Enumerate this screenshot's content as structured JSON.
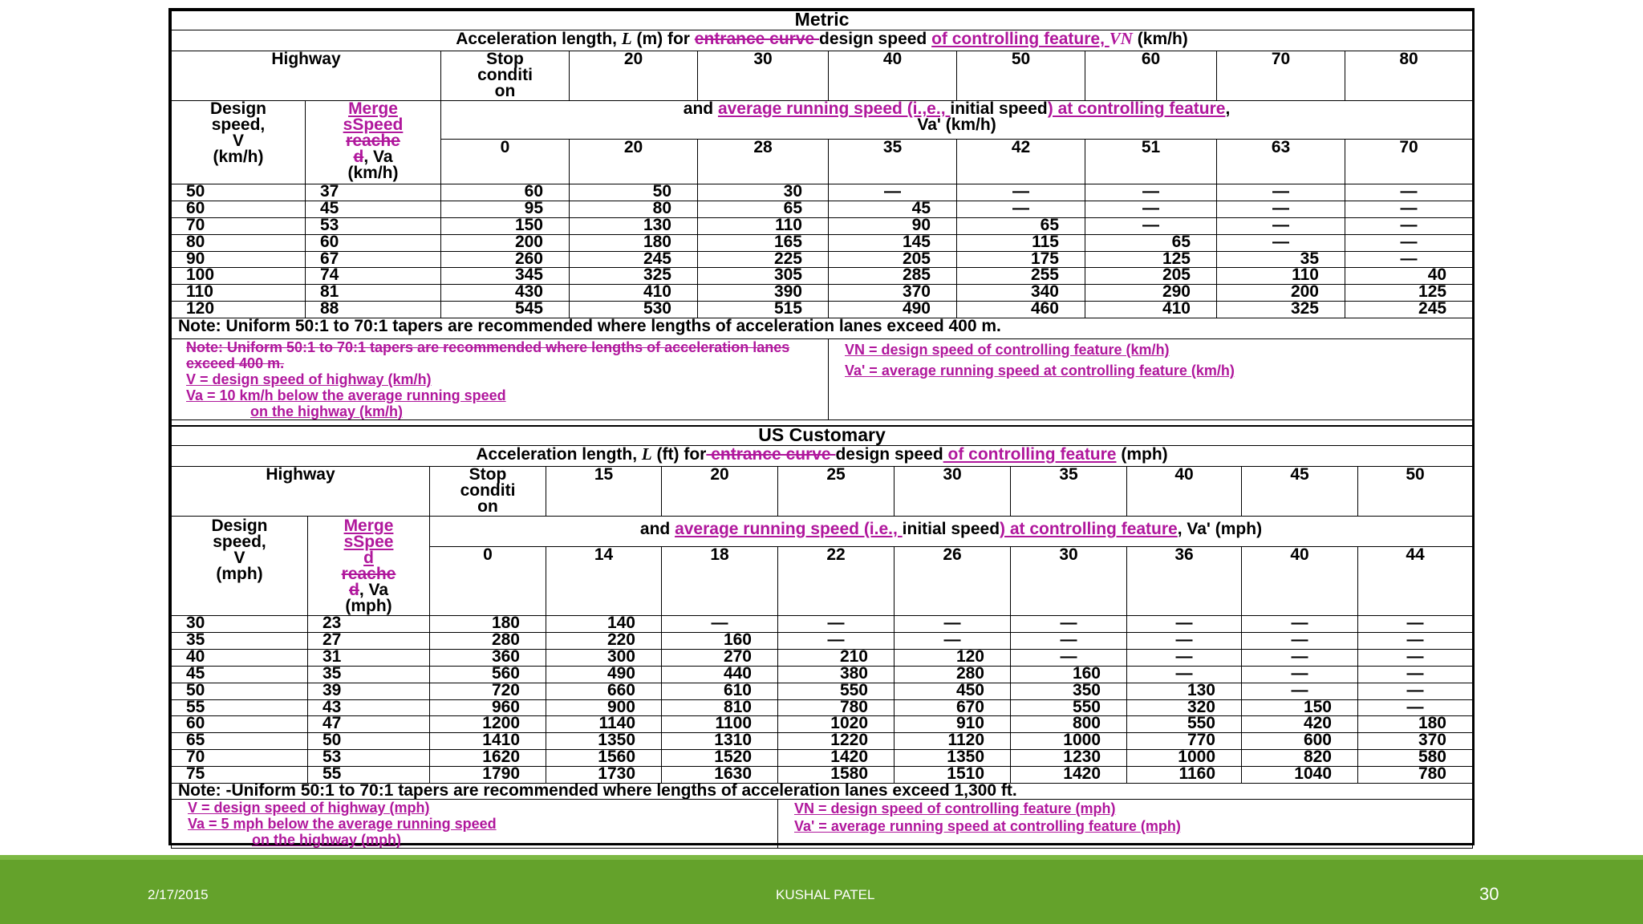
{
  "metric": {
    "title": "Metric",
    "subtitle": {
      "p1": "Acceleration length, ",
      "sym": "L",
      "p2": " (m) for ",
      "strike": "entrance curve ",
      "p3": "design speed ",
      "ins": "of controlling feature, ",
      "sym2": "VN",
      "p4": " (km/h)"
    },
    "highway_label": "Highway",
    "stop_condition": "Stop\nconditi\non",
    "design_speeds": [
      "20",
      "30",
      "40",
      "50",
      "60",
      "70",
      "80"
    ],
    "design_speed_label": "Design\nspeed,\nV\n(km/h)",
    "merge_label": {
      "ins": "Merge\nsSpeed",
      "strike": "reache\nd",
      "rest": ", Va\n(km/h)"
    },
    "avg_row": {
      "p1": "and ",
      "ins1": "average running speed (i.,e., ",
      "p2": "initial speed",
      "ins2": ") at controlling feature",
      "p3": ",",
      "line2": "Va' (km/h)"
    },
    "initial_speeds": [
      "0",
      "20",
      "28",
      "35",
      "42",
      "51",
      "63",
      "70"
    ],
    "rows": [
      [
        "50",
        "37",
        "60",
        "50",
        "30",
        "—",
        "—",
        "—",
        "—",
        "—"
      ],
      [
        "60",
        "45",
        "95",
        "80",
        "65",
        "45",
        "—",
        "—",
        "—",
        "—"
      ],
      [
        "70",
        "53",
        "150",
        "130",
        "110",
        "90",
        "65",
        "—",
        "—",
        "—"
      ],
      [
        "80",
        "60",
        "200",
        "180",
        "165",
        "145",
        "115",
        "65",
        "—",
        "—"
      ],
      [
        "90",
        "67",
        "260",
        "245",
        "225",
        "205",
        "175",
        "125",
        "35",
        "—"
      ],
      [
        "100",
        "74",
        "345",
        "325",
        "305",
        "285",
        "255",
        "205",
        "110",
        "40"
      ],
      [
        "110",
        "81",
        "430",
        "410",
        "390",
        "370",
        "340",
        "290",
        "200",
        "125"
      ],
      [
        "120",
        "88",
        "545",
        "530",
        "515",
        "490",
        "460",
        "410",
        "325",
        "245"
      ]
    ],
    "note": "Note:  Uniform 50:1 to 70:1 tapers are recommended where lengths of acceleration lanes exceed 400 m.",
    "legend_left": {
      "strike": "Note:  Uniform 50:1 to 70:1 tapers are recommended where lengths of acceleration lanes exceed 400 m.",
      "l1": "V  = design speed of highway (km/h)",
      "l2": "Va  = 10 km/h below the average running speed",
      "l3": "on the highway (km/h)"
    },
    "legend_right": {
      "l1": "VN   = design speed of controlling feature  (km/h)",
      "l2": "Va'  = average running speed at controlling feature  (km/h)"
    }
  },
  "us": {
    "title": "US Customary",
    "subtitle": {
      "p1": "Acceleration length, ",
      "sym": "L",
      "p2": " (ft) for",
      "strike": " entrance curve ",
      "p3": "design speed",
      "ins": " of controlling feature",
      "p4": " (mph)"
    },
    "highway_label": "Highway",
    "stop_condition": "Stop\nconditi\non",
    "design_speeds": [
      "15",
      "20",
      "25",
      "30",
      "35",
      "40",
      "45",
      "50"
    ],
    "design_speed_label": "Design\nspeed,\nV\n(mph)",
    "merge_label": {
      "ins": "Merge\nsSpee\nd",
      "strike": "reache\nd",
      "rest": ", Va\n(mph)"
    },
    "avg_row": {
      "p1": "and ",
      "ins1": "average running speed (i.e., ",
      "p2": "initial speed",
      "ins2": ") at controlling feature",
      "p3": ", Va'  (mph)"
    },
    "initial_speeds": [
      "0",
      "14",
      "18",
      "22",
      "26",
      "30",
      "36",
      "40",
      "44"
    ],
    "rows": [
      [
        "30",
        "23",
        "180",
        "140",
        "—",
        "—",
        "—",
        "—",
        "—",
        "—",
        "—"
      ],
      [
        "35",
        "27",
        "280",
        "220",
        "160",
        "—",
        "—",
        "—",
        "—",
        "—",
        "—"
      ],
      [
        "40",
        "31",
        "360",
        "300",
        "270",
        "210",
        "120",
        "—",
        "—",
        "—",
        "—"
      ],
      [
        "45",
        "35",
        "560",
        "490",
        "440",
        "380",
        "280",
        "160",
        "—",
        "—",
        "—"
      ],
      [
        "50",
        "39",
        "720",
        "660",
        "610",
        "550",
        "450",
        "350",
        "130",
        "—",
        "—"
      ],
      [
        "55",
        "43",
        "960",
        "900",
        "810",
        "780",
        "670",
        "550",
        "320",
        "150",
        "—"
      ],
      [
        "60",
        "47",
        "1200",
        "1140",
        "1100",
        "1020",
        "910",
        "800",
        "550",
        "420",
        "180"
      ],
      [
        "65",
        "50",
        "1410",
        "1350",
        "1310",
        "1220",
        "1120",
        "1000",
        "770",
        "600",
        "370"
      ],
      [
        "70",
        "53",
        "1620",
        "1560",
        "1520",
        "1420",
        "1350",
        "1230",
        "1000",
        "820",
        "580"
      ],
      [
        "75",
        "55",
        "1790",
        "1730",
        "1630",
        "1580",
        "1510",
        "1420",
        "1160",
        "1040",
        "780"
      ]
    ],
    "note": "Note: -Uniform 50:1 to 70:1 tapers are recommended where lengths of acceleration lanes exceed 1,300 ft.",
    "legend_left": {
      "l1": "V   = design speed of highway (mph)",
      "l2": "Va  = 5 mph below the average running speed",
      "l3": "on the highway (mph)"
    },
    "legend_right": {
      "l1": "VN   = design speed of controlling feature  (mph)",
      "l2": "Va'  = average running speed at controlling feature  (mph)"
    }
  },
  "footer": {
    "date": "2/17/2015",
    "author": "KUSHAL PATEL",
    "page": "30"
  },
  "colors": {
    "footer_green": "#64a22b",
    "revision_magenta": "#b0179c"
  }
}
